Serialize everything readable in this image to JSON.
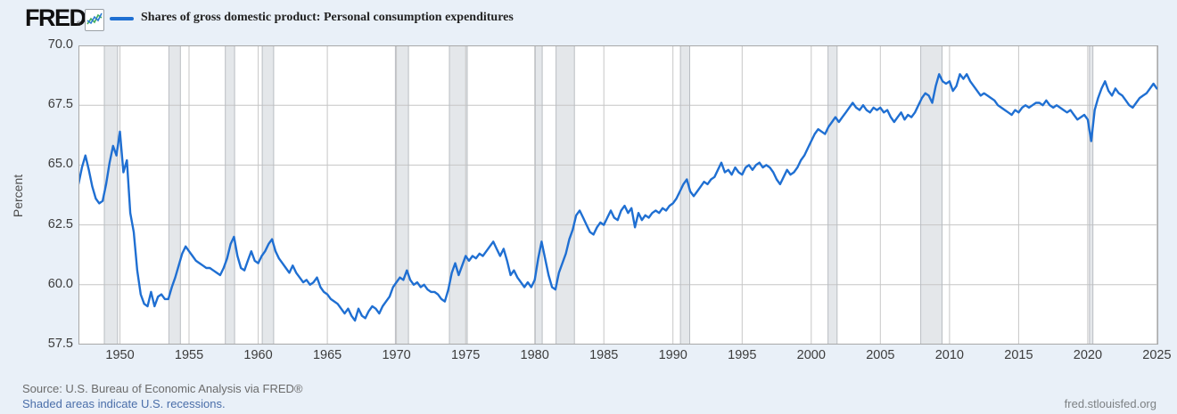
{
  "header": {
    "logo_text": "FRED",
    "registered_mark": "®",
    "legend": {
      "series_label": "Shares of gross domestic product: Personal consumption expenditures",
      "series_color": "#1f6fd2"
    }
  },
  "footer": {
    "source_text": "Source: U.S. Bureau of Economic Analysis via FRED®",
    "recession_note": "Shaded areas indicate U.S. recessions.",
    "site_text": "fred.stlouisfed.org"
  },
  "colors": {
    "page_background": "#e9f0f8",
    "plot_background": "#ffffff",
    "logo_color": "#101010",
    "icon_line_blue": "#2b7bd4",
    "icon_line_green": "#43b05c"
  },
  "chart_data": {
    "type": "line",
    "title": "Shares of gross domestic product: Personal consumption expenditures",
    "xlabel": "",
    "ylabel": "Percent",
    "ylim": [
      57.5,
      70.0
    ],
    "xlim": [
      1947,
      2025.1
    ],
    "grid": true,
    "legend_position": "top-left",
    "y_ticks": [
      70.0,
      67.5,
      65.0,
      62.5,
      60.0,
      57.5
    ],
    "x_ticks": [
      1950,
      1955,
      1960,
      1965,
      1970,
      1975,
      1980,
      1985,
      1990,
      1995,
      2000,
      2005,
      2010,
      2015,
      2020,
      2025
    ],
    "line_color": "#1f6fd2",
    "grid_color": "#c6c6c6",
    "border_color": "#a8a8a8",
    "recession_color": "#e4e7ea",
    "recession_edge_color": "#b9bdc2",
    "recessions": [
      [
        1948.87,
        1949.83
      ],
      [
        1953.54,
        1954.37
      ],
      [
        1957.62,
        1958.29
      ],
      [
        1960.29,
        1961.12
      ],
      [
        1969.92,
        1970.87
      ],
      [
        1973.83,
        1975.12
      ],
      [
        1980.04,
        1980.54
      ],
      [
        1981.54,
        1982.87
      ],
      [
        1990.54,
        1991.21
      ],
      [
        2001.21,
        2001.87
      ],
      [
        2007.92,
        2009.46
      ],
      [
        2020.12,
        2020.37
      ]
    ],
    "series": [
      {
        "name": "Shares of gross domestic product: Personal consumption expenditures",
        "units": "Percent",
        "frequency": "quarterly",
        "start_year": 1947,
        "values": [
          64.2,
          64.9,
          65.4,
          64.8,
          64.1,
          63.6,
          63.4,
          63.5,
          64.2,
          65.1,
          65.8,
          65.4,
          66.4,
          64.7,
          65.2,
          63.0,
          62.2,
          60.6,
          59.6,
          59.2,
          59.1,
          59.7,
          59.1,
          59.5,
          59.6,
          59.4,
          59.4,
          59.9,
          60.3,
          60.8,
          61.3,
          61.6,
          61.4,
          61.2,
          61.0,
          60.9,
          60.8,
          60.7,
          60.7,
          60.6,
          60.5,
          60.4,
          60.7,
          61.1,
          61.7,
          62.0,
          61.2,
          60.7,
          60.6,
          61.0,
          61.4,
          61.0,
          60.9,
          61.2,
          61.4,
          61.7,
          61.9,
          61.4,
          61.1,
          60.9,
          60.7,
          60.5,
          60.8,
          60.5,
          60.3,
          60.1,
          60.2,
          60.0,
          60.1,
          60.3,
          59.9,
          59.7,
          59.6,
          59.4,
          59.3,
          59.2,
          59.0,
          58.8,
          59.0,
          58.7,
          58.5,
          59.0,
          58.7,
          58.6,
          58.9,
          59.1,
          59.0,
          58.8,
          59.1,
          59.3,
          59.5,
          59.9,
          60.1,
          60.3,
          60.2,
          60.6,
          60.2,
          60.0,
          60.1,
          59.9,
          60.0,
          59.8,
          59.7,
          59.7,
          59.6,
          59.4,
          59.3,
          59.8,
          60.5,
          60.9,
          60.4,
          60.8,
          61.2,
          61.0,
          61.2,
          61.1,
          61.3,
          61.2,
          61.4,
          61.6,
          61.8,
          61.5,
          61.2,
          61.5,
          61.0,
          60.4,
          60.6,
          60.3,
          60.1,
          59.9,
          60.1,
          59.9,
          60.2,
          61.1,
          61.8,
          61.1,
          60.4,
          59.9,
          59.8,
          60.5,
          60.9,
          61.3,
          61.9,
          62.3,
          62.9,
          63.1,
          62.8,
          62.5,
          62.2,
          62.1,
          62.4,
          62.6,
          62.5,
          62.8,
          63.1,
          62.8,
          62.7,
          63.1,
          63.3,
          63.0,
          63.2,
          62.4,
          63.0,
          62.7,
          62.9,
          62.8,
          63.0,
          63.1,
          63.0,
          63.2,
          63.1,
          63.3,
          63.4,
          63.6,
          63.9,
          64.2,
          64.4,
          63.9,
          63.7,
          63.9,
          64.1,
          64.3,
          64.2,
          64.4,
          64.5,
          64.8,
          65.1,
          64.7,
          64.8,
          64.6,
          64.9,
          64.7,
          64.6,
          64.9,
          65.0,
          64.8,
          65.0,
          65.1,
          64.9,
          65.0,
          64.9,
          64.7,
          64.4,
          64.2,
          64.5,
          64.8,
          64.6,
          64.7,
          64.9,
          65.2,
          65.4,
          65.7,
          66.0,
          66.3,
          66.5,
          66.4,
          66.3,
          66.6,
          66.8,
          67.0,
          66.8,
          67.0,
          67.2,
          67.4,
          67.6,
          67.4,
          67.3,
          67.5,
          67.3,
          67.2,
          67.4,
          67.3,
          67.4,
          67.2,
          67.3,
          67.0,
          66.8,
          67.0,
          67.2,
          66.9,
          67.1,
          67.0,
          67.2,
          67.5,
          67.8,
          68.0,
          67.9,
          67.6,
          68.3,
          68.8,
          68.5,
          68.4,
          68.5,
          68.1,
          68.3,
          68.8,
          68.6,
          68.8,
          68.5,
          68.3,
          68.1,
          67.9,
          68.0,
          67.9,
          67.8,
          67.7,
          67.5,
          67.4,
          67.3,
          67.2,
          67.1,
          67.3,
          67.2,
          67.4,
          67.5,
          67.4,
          67.5,
          67.6,
          67.6,
          67.5,
          67.7,
          67.5,
          67.4,
          67.5,
          67.4,
          67.3,
          67.2,
          67.3,
          67.1,
          66.9,
          67.0,
          67.1,
          66.9,
          66.0,
          67.3,
          67.8,
          68.2,
          68.5,
          68.1,
          67.9,
          68.2,
          68.0,
          67.9,
          67.7,
          67.5,
          67.4,
          67.6,
          67.8,
          67.9,
          68.0,
          68.2,
          68.4,
          68.2
        ]
      }
    ]
  }
}
